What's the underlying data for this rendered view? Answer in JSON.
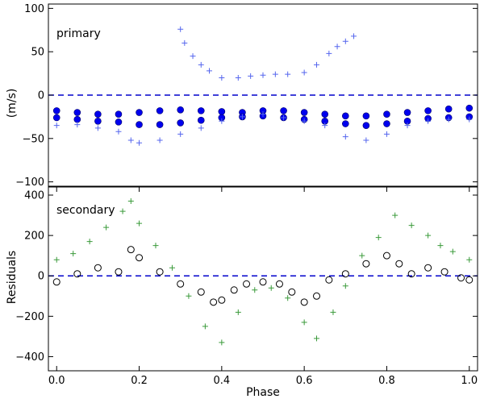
{
  "chart_data": [
    {
      "type": "scatter",
      "panel_label": "primary",
      "xlim": [
        -0.02,
        1.02
      ],
      "ylim": [
        -105,
        105
      ],
      "yticks": [
        100,
        50,
        0,
        -50,
        -100
      ],
      "ytick_labels": [
        "100",
        "50",
        "0",
        "−50",
        "−100"
      ],
      "reference_line": {
        "y": 0,
        "style": "dashed",
        "color": "#0000cc"
      },
      "series": [
        {
          "name": "filled circles (dense band)",
          "marker": "circle-filled",
          "color": "#0000ee",
          "x": [
            0.0,
            0.05,
            0.1,
            0.15,
            0.2,
            0.25,
            0.3,
            0.35,
            0.4,
            0.45,
            0.5,
            0.55,
            0.6,
            0.65,
            0.7,
            0.75,
            0.8,
            0.85,
            0.9,
            0.95,
            1.0,
            0.0,
            0.05,
            0.1,
            0.15,
            0.2,
            0.25,
            0.3,
            0.35,
            0.4,
            0.45,
            0.5,
            0.55,
            0.6,
            0.65,
            0.7,
            0.75,
            0.8,
            0.85,
            0.9,
            0.95,
            1.0
          ],
          "y": [
            -18,
            -20,
            -22,
            -22,
            -20,
            -18,
            -17,
            -18,
            -19,
            -20,
            -18,
            -18,
            -20,
            -22,
            -24,
            -24,
            -22,
            -20,
            -18,
            -16,
            -15,
            -26,
            -28,
            -30,
            -31,
            -34,
            -34,
            -32,
            -29,
            -26,
            -25,
            -24,
            -26,
            -28,
            -30,
            -33,
            -35,
            -33,
            -30,
            -27,
            -26,
            -25
          ]
        },
        {
          "name": "crosses",
          "marker": "plus",
          "color": "#5566ee",
          "x": [
            0.3,
            0.31,
            0.33,
            0.35,
            0.37,
            0.4,
            0.44,
            0.47,
            0.5,
            0.53,
            0.56,
            0.6,
            0.63,
            0.66,
            0.68,
            0.7,
            0.72,
            0.0,
            0.05,
            0.1,
            0.15,
            0.18,
            0.2,
            0.25,
            0.3,
            0.35,
            0.4,
            0.45,
            0.5,
            0.55,
            0.6,
            0.65,
            0.7,
            0.75,
            0.8,
            0.85,
            0.9,
            0.95,
            1.0
          ],
          "y": [
            76,
            60,
            45,
            35,
            28,
            20,
            20,
            22,
            23,
            24,
            24,
            26,
            35,
            48,
            56,
            62,
            68,
            -35,
            -34,
            -38,
            -42,
            -52,
            -55,
            -52,
            -45,
            -38,
            -30,
            -25,
            -22,
            -26,
            -30,
            -35,
            -48,
            -52,
            -45,
            -35,
            -30,
            -28,
            -28
          ]
        }
      ]
    },
    {
      "type": "scatter",
      "panel_label": "secondary",
      "xlabel": "Phase",
      "ylabel": "Residuals",
      "shared_ylabel_prefix": "(m/s)",
      "xlim": [
        -0.02,
        1.02
      ],
      "ylim": [
        -470,
        440
      ],
      "xticks": [
        0.0,
        0.2,
        0.4,
        0.6,
        0.8,
        1.0
      ],
      "xtick_labels": [
        "0.0",
        "0.2",
        "0.4",
        "0.6",
        "0.8",
        "1.0"
      ],
      "yticks": [
        400,
        200,
        0,
        -200,
        -400
      ],
      "ytick_labels": [
        "400",
        "200",
        "0",
        "−200",
        "−400"
      ],
      "reference_line": {
        "y": 0,
        "style": "dashed",
        "color": "#0000cc"
      },
      "series": [
        {
          "name": "open circles",
          "marker": "circle-open",
          "color": "#000000",
          "x": [
            0.0,
            0.05,
            0.1,
            0.15,
            0.18,
            0.2,
            0.25,
            0.3,
            0.35,
            0.38,
            0.4,
            0.43,
            0.46,
            0.5,
            0.54,
            0.57,
            0.6,
            0.63,
            0.66,
            0.7,
            0.75,
            0.8,
            0.83,
            0.86,
            0.9,
            0.94,
            0.98,
            1.0
          ],
          "y": [
            -30,
            10,
            40,
            20,
            130,
            90,
            20,
            -40,
            -80,
            -130,
            -120,
            -70,
            -40,
            -30,
            -40,
            -80,
            -130,
            -100,
            -20,
            10,
            60,
            100,
            60,
            10,
            40,
            20,
            -10,
            -20
          ]
        },
        {
          "name": "green crosses",
          "marker": "plus",
          "color": "#3a9a3a",
          "x": [
            0.0,
            0.04,
            0.08,
            0.12,
            0.16,
            0.18,
            0.2,
            0.24,
            0.28,
            0.32,
            0.36,
            0.4,
            0.44,
            0.48,
            0.52,
            0.56,
            0.6,
            0.63,
            0.67,
            0.7,
            0.74,
            0.78,
            0.82,
            0.86,
            0.9,
            0.93,
            0.96,
            1.0
          ],
          "y": [
            80,
            110,
            170,
            240,
            320,
            370,
            260,
            150,
            40,
            -100,
            -250,
            -330,
            -180,
            -70,
            -60,
            -110,
            -230,
            -310,
            -180,
            -50,
            100,
            190,
            300,
            250,
            200,
            150,
            120,
            80
          ]
        }
      ]
    }
  ]
}
